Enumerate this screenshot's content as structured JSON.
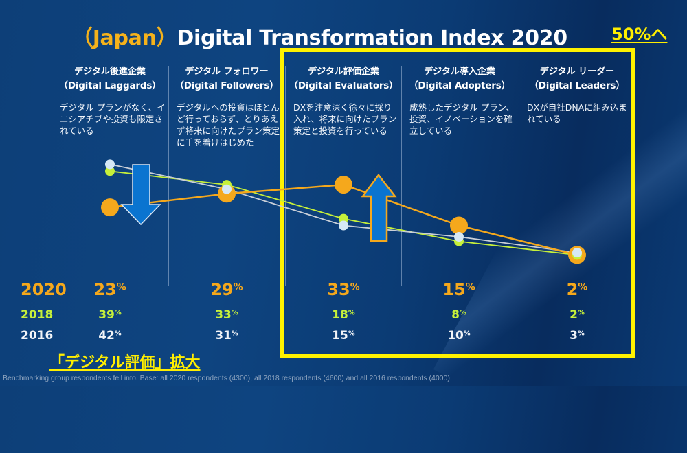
{
  "title": {
    "prefix": "（Japan）",
    "main": "Digital Transformation Index 2020",
    "goal_label": "50%へ"
  },
  "colors": {
    "2020": "#f5a81c",
    "2018": "#c6f03a",
    "2016": "#d6e8f5",
    "highlight": "#fff200",
    "arrow": "#0a74d0"
  },
  "columns": [
    {
      "jp": "デジタル後進企業",
      "en": "（Digital Laggards）",
      "desc": "デジタル プランがなく、イニシアチブや投資も限定されている"
    },
    {
      "jp": "デジタル フォロワー",
      "en": "（Digital Followers）",
      "desc": "デジタルへの投資はほとんど行っておらず、とりあえず将来に向けたプラン策定に手を着けはじめた"
    },
    {
      "jp": "デジタル評価企業",
      "en": "（Digital Evaluators）",
      "desc": "DXを注意深く徐々に採り入れ、将来に向けたプラン策定と投資を行っている"
    },
    {
      "jp": "デジタル導入企業",
      "en": "（Digital Adopters）",
      "desc": "成熟したデジタル プラン、投資、イノベーションを確立している"
    },
    {
      "jp": "デジタル リーダー",
      "en": "（Digital Leaders）",
      "desc": "DXが自社DNAに組み込まれている"
    }
  ],
  "chart_data": {
    "type": "line",
    "title": "（Japan）Digital Transformation Index 2020",
    "categories": [
      "Digital Laggards",
      "Digital Followers",
      "Digital Evaluators",
      "Digital Adopters",
      "Digital Leaders"
    ],
    "series": [
      {
        "name": "2020",
        "values": [
          23,
          29,
          33,
          15,
          2
        ]
      },
      {
        "name": "2018",
        "values": [
          39,
          33,
          18,
          8,
          2
        ]
      },
      {
        "name": "2016",
        "values": [
          42,
          31,
          15,
          10,
          3
        ]
      }
    ],
    "unit": "%",
    "ylim": [
      0,
      45
    ],
    "grid": false,
    "annotations": [
      "down arrow on Digital Laggards",
      "up arrow on Digital Evaluators"
    ]
  },
  "rows": [
    {
      "year": "2020",
      "values": [
        "23",
        "29",
        "33",
        "15",
        "2"
      ]
    },
    {
      "year": "2018",
      "values": [
        "39",
        "33",
        "18",
        "8",
        "2"
      ]
    },
    {
      "year": "2016",
      "values": [
        "42",
        "31",
        "15",
        "10",
        "3"
      ]
    }
  ],
  "percent_sign": "%",
  "caption": "「デジタル評価」拡大",
  "footnote": "Benchmarking group respondents fell into. Base: all 2020 respondents (4300), all 2018 respondents (4600) and all 2016 respondents (4000)"
}
